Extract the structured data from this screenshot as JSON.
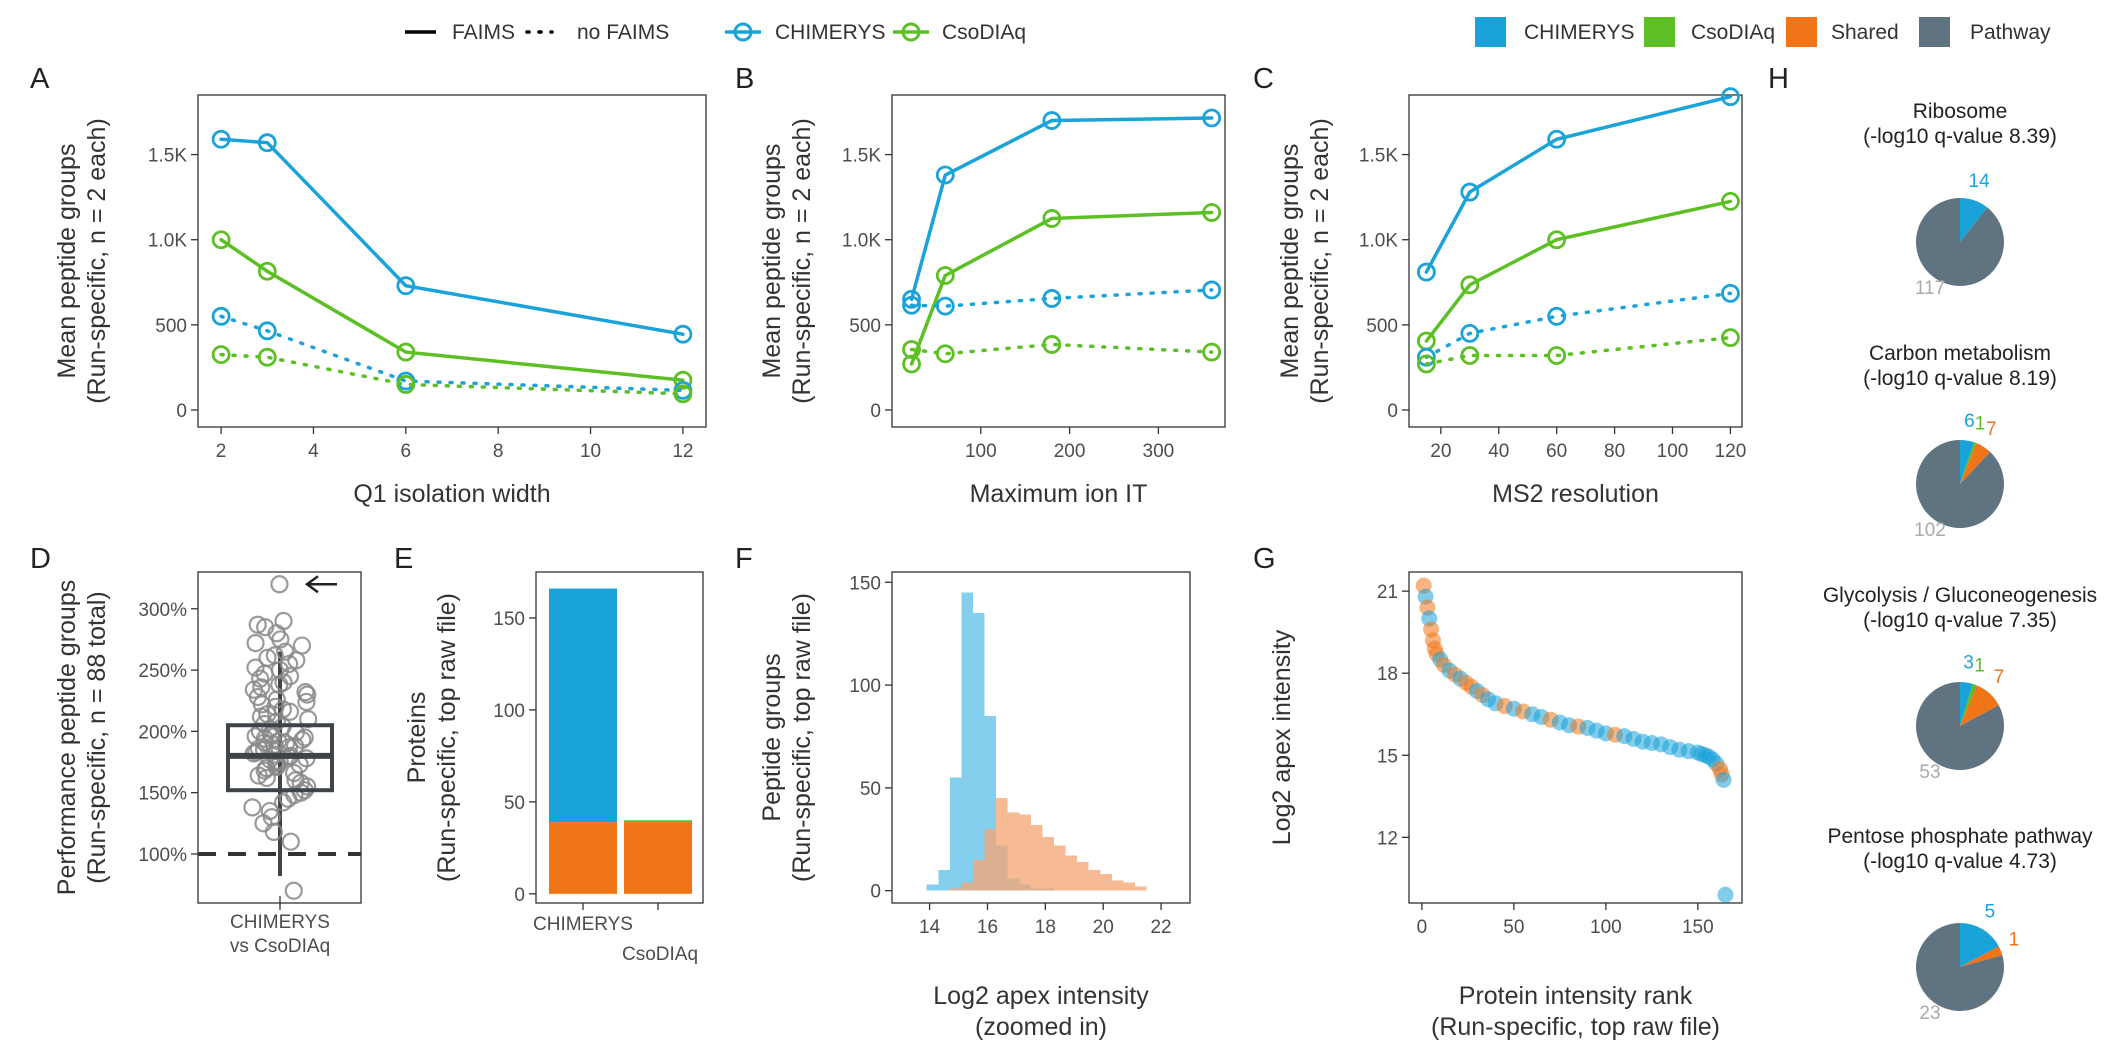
{
  "colors": {
    "chimerys": "#1aa3d9",
    "csodiaq": "#5cbf23",
    "shared": "#f07418",
    "pathway": "#5f7380",
    "hist_chimerys": "#85cfee",
    "hist_csodiaq": "#f4a777",
    "pie_label_pathway": "#aaaaaa"
  },
  "legend": {
    "faims": "FAIMS",
    "no_faims": "no FAIMS",
    "chimerys": "CHIMERYS",
    "csodiaq": "CsoDIAq",
    "fill_items": [
      "CHIMERYS",
      "CsoDIAq",
      "Shared",
      "Pathway"
    ]
  },
  "chart_data": [
    {
      "panel": "A",
      "type": "line",
      "xlabel": "Q1 isolation width",
      "ylabel": [
        "Mean peptide groups",
        "(Run-specific, n = 2 each)"
      ],
      "xlim": [
        1.5,
        12.5
      ],
      "ylim": [
        -100,
        1850
      ],
      "xticks": [
        2,
        4,
        6,
        8,
        10,
        12
      ],
      "yticks": [
        0,
        500,
        1000,
        1500
      ],
      "yticklabels": [
        "0",
        "500",
        "1.0K",
        "1.5K"
      ],
      "series": [
        {
          "engine": "CHIMERYS",
          "faims": true,
          "x": [
            2,
            3,
            6,
            12
          ],
          "y": [
            1590,
            1570,
            730,
            445
          ]
        },
        {
          "engine": "CsoDIAq",
          "faims": true,
          "x": [
            2,
            3,
            6,
            12
          ],
          "y": [
            1000,
            815,
            340,
            175
          ]
        },
        {
          "engine": "CHIMERYS",
          "faims": false,
          "x": [
            2,
            3,
            6,
            12
          ],
          "y": [
            550,
            465,
            170,
            115
          ]
        },
        {
          "engine": "CsoDIAq",
          "faims": false,
          "x": [
            2,
            3,
            6,
            12
          ],
          "y": [
            325,
            310,
            150,
            95
          ]
        }
      ]
    },
    {
      "panel": "B",
      "type": "line",
      "xlabel": "Maximum ion IT",
      "ylabel": [
        "Mean peptide groups",
        "(Run-specific, n = 2 each)"
      ],
      "xlim": [
        0,
        375
      ],
      "ylim": [
        -100,
        1850
      ],
      "xticks": [
        100,
        200,
        300
      ],
      "yticks": [
        0,
        500,
        1000,
        1500
      ],
      "yticklabels": [
        "0",
        "500",
        "1.0K",
        "1.5K"
      ],
      "series": [
        {
          "engine": "CHIMERYS",
          "faims": true,
          "x": [
            22,
            60,
            180,
            360
          ],
          "y": [
            650,
            1380,
            1700,
            1715
          ]
        },
        {
          "engine": "CsoDIAq",
          "faims": true,
          "x": [
            22,
            60,
            180,
            360
          ],
          "y": [
            270,
            790,
            1125,
            1160
          ]
        },
        {
          "engine": "CHIMERYS",
          "faims": false,
          "x": [
            22,
            60,
            180,
            360
          ],
          "y": [
            615,
            610,
            655,
            705
          ]
        },
        {
          "engine": "CsoDIAq",
          "faims": false,
          "x": [
            22,
            60,
            180,
            360
          ],
          "y": [
            355,
            330,
            385,
            340
          ]
        }
      ]
    },
    {
      "panel": "C",
      "type": "line",
      "xlabel": "MS2 resolution",
      "ylabel": [
        "Mean peptide groups",
        "(Run-specific, n = 2 each)"
      ],
      "xlim": [
        9,
        124
      ],
      "ylim": [
        -100,
        1850
      ],
      "xticks": [
        20,
        40,
        60,
        80,
        100,
        120
      ],
      "yticks": [
        0,
        500,
        1000,
        1500
      ],
      "yticklabels": [
        "0",
        "500",
        "1.0K",
        "1.5K"
      ],
      "series": [
        {
          "engine": "CHIMERYS",
          "faims": true,
          "x": [
            15,
            30,
            60,
            120
          ],
          "y": [
            810,
            1280,
            1590,
            1840
          ]
        },
        {
          "engine": "CsoDIAq",
          "faims": true,
          "x": [
            15,
            30,
            60,
            120
          ],
          "y": [
            405,
            735,
            1000,
            1225
          ]
        },
        {
          "engine": "CHIMERYS",
          "faims": false,
          "x": [
            15,
            30,
            60,
            120
          ],
          "y": [
            310,
            450,
            550,
            685
          ]
        },
        {
          "engine": "CsoDIAq",
          "faims": false,
          "x": [
            15,
            30,
            60,
            120
          ],
          "y": [
            270,
            320,
            320,
            425
          ]
        }
      ]
    },
    {
      "panel": "D",
      "type": "box",
      "category": [
        "CHIMERYS",
        "vs CsoDIAq"
      ],
      "ylabel": [
        "Performance peptide groups",
        "(Run-specific, n = 88 total)"
      ],
      "ylim": [
        60,
        330
      ],
      "yticks": [
        100,
        150,
        200,
        250,
        300
      ],
      "yticklabels": [
        "100%",
        "150%",
        "200%",
        "250%",
        "300%"
      ],
      "reference_line": 100,
      "box": {
        "q1": 152,
        "median": 180,
        "q3": 205,
        "whisker_low": 82,
        "whisker_high": 265
      },
      "values": [
        320,
        290,
        287,
        285,
        280,
        275,
        272,
        270,
        265,
        262,
        260,
        258,
        255,
        252,
        250,
        247,
        245,
        243,
        240,
        238,
        236,
        234,
        232,
        230,
        228,
        226,
        224,
        222,
        220,
        218,
        216,
        214,
        212,
        210,
        208,
        206,
        204,
        202,
        200,
        199,
        198,
        197,
        196,
        195,
        194,
        193,
        192,
        191,
        190,
        189,
        188,
        187,
        186,
        185,
        184,
        183,
        182,
        181,
        180,
        179,
        178,
        177,
        176,
        175,
        174,
        173,
        172,
        171,
        170,
        168,
        166,
        164,
        162,
        160,
        158,
        155,
        152,
        150,
        148,
        145,
        142,
        138,
        135,
        130,
        125,
        118,
        110,
        70
      ]
    },
    {
      "panel": "E",
      "type": "bar",
      "ylabel": [
        "Proteins",
        "(Run-specific, top raw file)"
      ],
      "categories": [
        "CHIMERYS",
        "CsoDIAq"
      ],
      "ylim": [
        -5,
        175
      ],
      "yticks": [
        0,
        50,
        100,
        150
      ],
      "series": [
        {
          "name": "Shared",
          "values": [
            39,
            39
          ]
        },
        {
          "name": "CHIMERYS",
          "values": [
            127,
            0
          ]
        },
        {
          "name": "CsoDIAq",
          "values": [
            0,
            1
          ]
        }
      ]
    },
    {
      "panel": "F",
      "type": "histogram",
      "xlabel": [
        "Log2 apex intensity",
        "(zoomed in)"
      ],
      "ylabel": [
        "Peptide groups",
        "(Run-specific, top raw file)"
      ],
      "xlim": [
        12.7,
        23.0
      ],
      "ylim": [
        -6,
        155
      ],
      "xticks": [
        14,
        16,
        18,
        20,
        22
      ],
      "yticks": [
        0,
        50,
        100,
        150
      ],
      "bin_start": 13.5,
      "bin_width": 0.4,
      "series": [
        {
          "name": "CHIMERYS",
          "counts": [
            0,
            3,
            10,
            55,
            145,
            135,
            85,
            22,
            6,
            3,
            1,
            1,
            0,
            0,
            0,
            0,
            0,
            0,
            0,
            0,
            0
          ]
        },
        {
          "name": "CsoDIAq",
          "counts": [
            0,
            0,
            0,
            1,
            4,
            15,
            30,
            45,
            38,
            37,
            32,
            26,
            22,
            17,
            14,
            10,
            8,
            5,
            4,
            2,
            0
          ]
        }
      ]
    },
    {
      "panel": "G",
      "type": "scatter",
      "xlabel": [
        "Protein intensity rank",
        "(Run-specific, top raw file)"
      ],
      "ylabel": "Log2 apex intensity",
      "xlim": [
        -7,
        174
      ],
      "ylim": [
        9.6,
        21.7
      ],
      "xticks": [
        0,
        50,
        100,
        150
      ],
      "yticks": [
        12,
        15,
        18,
        21
      ],
      "note": "Points trace a decreasing curve; orange = shared, blue = CHIMERYS-only.",
      "x": [
        1,
        2,
        3,
        4,
        5,
        6,
        7,
        8,
        10,
        12,
        15,
        18,
        21,
        24,
        27,
        30,
        33,
        36,
        40,
        45,
        50,
        55,
        60,
        65,
        70,
        75,
        80,
        85,
        90,
        95,
        100,
        105,
        110,
        115,
        120,
        125,
        130,
        135,
        140,
        145,
        150,
        152,
        154,
        156,
        158,
        160,
        162,
        163,
        164,
        165
      ],
      "y": [
        21.2,
        20.8,
        20.4,
        20.0,
        19.6,
        19.2,
        18.9,
        18.7,
        18.5,
        18.3,
        18.1,
        17.95,
        17.8,
        17.65,
        17.5,
        17.35,
        17.2,
        17.05,
        16.9,
        16.8,
        16.7,
        16.6,
        16.5,
        16.4,
        16.3,
        16.2,
        16.1,
        16.05,
        16.0,
        15.9,
        15.8,
        15.75,
        15.7,
        15.6,
        15.5,
        15.45,
        15.4,
        15.3,
        15.2,
        15.15,
        15.1,
        15.05,
        15.0,
        14.95,
        14.85,
        14.7,
        14.5,
        14.3,
        14.1,
        9.9
      ],
      "group": [
        "Shared",
        "CHIMERYS",
        "Shared",
        "CHIMERYS",
        "Shared",
        "Shared",
        "Shared",
        "Shared",
        "CHIMERYS",
        "Shared",
        "CHIMERYS",
        "Shared",
        "CHIMERYS",
        "Shared",
        "Shared",
        "CHIMERYS",
        "Shared",
        "CHIMERYS",
        "CHIMERYS",
        "Shared",
        "CHIMERYS",
        "Shared",
        "CHIMERYS",
        "CHIMERYS",
        "Shared",
        "CHIMERYS",
        "CHIMERYS",
        "Shared",
        "CHIMERYS",
        "CHIMERYS",
        "CHIMERYS",
        "Shared",
        "CHIMERYS",
        "CHIMERYS",
        "CHIMERYS",
        "CHIMERYS",
        "CHIMERYS",
        "CHIMERYS",
        "CHIMERYS",
        "CHIMERYS",
        "CHIMERYS",
        "CHIMERYS",
        "CHIMERYS",
        "CHIMERYS",
        "CHIMERYS",
        "CHIMERYS",
        "Shared",
        "Shared",
        "CHIMERYS",
        "CHIMERYS"
      ]
    },
    {
      "panel": "H",
      "type": "pie",
      "pies": [
        {
          "title": [
            "Ribosome",
            "(-log10 q-value 8.39)"
          ],
          "slices": [
            {
              "name": "Pathway",
              "value": 117,
              "label": "117"
            },
            {
              "name": "CHIMERYS",
              "value": 14,
              "label": "14"
            },
            {
              "name": "CsoDIAq",
              "value": 0,
              "label": ""
            },
            {
              "name": "Shared",
              "value": 0,
              "label": ""
            }
          ]
        },
        {
          "title": [
            "Carbon metabolism",
            "(-log10 q-value 8.19)"
          ],
          "slices": [
            {
              "name": "Pathway",
              "value": 102,
              "label": "102"
            },
            {
              "name": "CHIMERYS",
              "value": 6,
              "label": "6"
            },
            {
              "name": "CsoDIAq",
              "value": 1,
              "label": "1"
            },
            {
              "name": "Shared",
              "value": 7,
              "label": "7"
            }
          ]
        },
        {
          "title": [
            "Glycolysis / Gluconeogenesis",
            "(-log10 q-value 7.35)"
          ],
          "slices": [
            {
              "name": "Pathway",
              "value": 53,
              "label": "53"
            },
            {
              "name": "CHIMERYS",
              "value": 3,
              "label": "3"
            },
            {
              "name": "CsoDIAq",
              "value": 1,
              "label": "1"
            },
            {
              "name": "Shared",
              "value": 7,
              "label": "7"
            }
          ]
        },
        {
          "title": [
            "Pentose phosphate pathway",
            "(-log10 q-value 4.73)"
          ],
          "slices": [
            {
              "name": "Pathway",
              "value": 23,
              "label": "23"
            },
            {
              "name": "CHIMERYS",
              "value": 5,
              "label": "5"
            },
            {
              "name": "CsoDIAq",
              "value": 0,
              "label": ""
            },
            {
              "name": "Shared",
              "value": 1,
              "label": "1"
            }
          ]
        }
      ]
    }
  ],
  "panel_letters": [
    "A",
    "B",
    "C",
    "D",
    "E",
    "F",
    "G",
    "H"
  ]
}
